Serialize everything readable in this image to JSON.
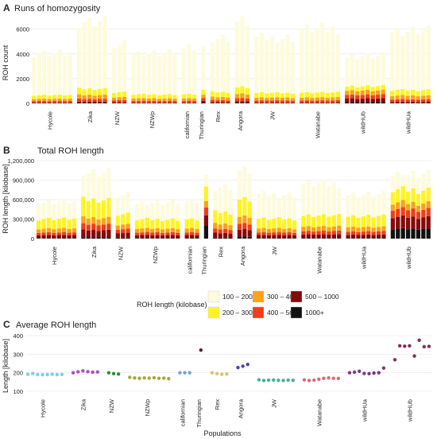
{
  "chart_data": [
    {
      "panel_letter": "A",
      "title": "Runs of homozygosity",
      "type": "bar",
      "stacked": true,
      "ylabel": "ROH count",
      "ylim": [
        0,
        7200
      ],
      "yticks": [
        0,
        2000,
        4000,
        6000
      ],
      "ytick_labels": [
        "0",
        "2000",
        "4000",
        "6000"
      ],
      "groups": [
        {
          "name": "Hycole",
          "n": 8,
          "total": 4000,
          "base": [
            350,
            300,
            180,
            120,
            60,
            15
          ]
        },
        {
          "name": "Zika",
          "n": 6,
          "total": 6650,
          "base": [
            600,
            500,
            320,
            220,
            110,
            30
          ]
        },
        {
          "name": "NZW",
          "n": 3,
          "total": 4700,
          "base": [
            450,
            400,
            240,
            160,
            80,
            20
          ]
        },
        {
          "name": "NZWp",
          "n": 9,
          "total": 4100,
          "base": [
            400,
            320,
            200,
            130,
            60,
            15
          ]
        },
        {
          "name": "californian",
          "n": 3,
          "total": 4400,
          "base": [
            400,
            330,
            200,
            130,
            60,
            15
          ]
        },
        {
          "name": "Thuringian",
          "n": 1,
          "total": 4500,
          "base": [
            450,
            400,
            280,
            200,
            150,
            60
          ]
        },
        {
          "name": "Rex",
          "n": 4,
          "total": 5300,
          "base": [
            450,
            400,
            250,
            160,
            80,
            20
          ]
        },
        {
          "name": "Angora",
          "n": 3,
          "total": 6600,
          "base": [
            700,
            550,
            350,
            250,
            130,
            40
          ]
        },
        {
          "name": "JW",
          "n": 8,
          "total": 5300,
          "base": [
            450,
            380,
            230,
            150,
            70,
            15
          ]
        },
        {
          "name": "Watanabe",
          "n": 8,
          "total": 6000,
          "base": [
            450,
            400,
            240,
            150,
            70,
            15
          ]
        },
        {
          "name": "wildHUb",
          "n": 8,
          "total": 3800,
          "base": [
            400,
            350,
            350,
            300,
            300,
            100
          ]
        },
        {
          "name": "wildHUa",
          "n": 8,
          "total": 5900,
          "base": [
            550,
            450,
            300,
            200,
            100,
            25
          ]
        }
      ],
      "series": [
        {
          "name": "100 - 200",
          "color": "#fdfbdd"
        },
        {
          "name": "200 - 300",
          "color": "#fff326"
        },
        {
          "name": "300 - 400",
          "color": "#f9a21a"
        },
        {
          "name": "400 - 500",
          "color": "#ef3e1c"
        },
        {
          "name": "500 - 1000",
          "color": "#850a0a"
        },
        {
          "name": "1000+",
          "color": "#111111"
        }
      ]
    },
    {
      "panel_letter": "B",
      "title": "Total ROH length",
      "type": "bar",
      "stacked": true,
      "ylabel": "ROH length [kilobase]",
      "ylim": [
        0,
        1250000
      ],
      "yticks": [
        0,
        300000,
        600000,
        900000,
        1200000
      ],
      "ytick_labels": [
        "0",
        "300,000",
        "600,000",
        "900,000",
        "1,200,000"
      ],
      "groups": [
        {
          "name": "Hycole",
          "n": 8,
          "total": 560000,
          "base": [
            180000,
            150000,
            60000,
            40000,
            45000,
            10000
          ]
        },
        {
          "name": "Zika",
          "n": 6,
          "total": 1020000,
          "base": [
            300000,
            280000,
            100000,
            90000,
            110000,
            20000
          ]
        },
        {
          "name": "NZW",
          "n": 3,
          "total": 660000,
          "base": [
            220000,
            160000,
            70000,
            60000,
            70000,
            15000
          ]
        },
        {
          "name": "NZWp",
          "n": 9,
          "total": 560000,
          "base": [
            180000,
            140000,
            60000,
            40000,
            45000,
            10000
          ]
        },
        {
          "name": "californian",
          "n": 3,
          "total": 560000,
          "base": [
            180000,
            140000,
            60000,
            40000,
            45000,
            10000
          ]
        },
        {
          "name": "Thuringian",
          "n": 1,
          "total": 950000,
          "base": [
            150000,
            220000,
            100000,
            120000,
            150000,
            200000
          ]
        },
        {
          "name": "Rex",
          "n": 4,
          "total": 800000,
          "base": [
            220000,
            180000,
            80000,
            60000,
            70000,
            15000
          ]
        },
        {
          "name": "Angora",
          "n": 3,
          "total": 1050000,
          "base": [
            320000,
            270000,
            110000,
            90000,
            110000,
            30000
          ]
        },
        {
          "name": "JW",
          "n": 8,
          "total": 680000,
          "base": [
            180000,
            150000,
            60000,
            40000,
            45000,
            10000
          ]
        },
        {
          "name": "Watanabe",
          "n": 8,
          "total": 840000,
          "base": [
            220000,
            170000,
            70000,
            50000,
            55000,
            10000
          ]
        },
        {
          "name": "wildHUa",
          "n": 8,
          "total": 680000,
          "base": [
            200000,
            170000,
            70000,
            50000,
            50000,
            10000
          ]
        },
        {
          "name": "wildHUb",
          "n": 8,
          "total": 1000000,
          "base": [
            150000,
            200000,
            100000,
            120000,
            180000,
            150000
          ]
        }
      ],
      "series": [
        {
          "name": "100 - 200",
          "color": "#fdfbdd"
        },
        {
          "name": "200 - 300",
          "color": "#fff326"
        },
        {
          "name": "300 - 400",
          "color": "#f9a21a"
        },
        {
          "name": "400 - 500",
          "color": "#ef3e1c"
        },
        {
          "name": "500 - 1000",
          "color": "#850a0a"
        },
        {
          "name": "1000+",
          "color": "#111111"
        }
      ]
    },
    {
      "panel_letter": "C",
      "title": "Average ROH length",
      "type": "scatter",
      "ylabel": "Length [kilobase]",
      "xlabel": "Populations",
      "ylim": [
        100,
        400
      ],
      "yticks": [
        100,
        200,
        300,
        400
      ],
      "ytick_labels": [
        "100",
        "200",
        "300",
        "400"
      ],
      "groups": [
        {
          "name": "Hycole",
          "color": "#7ccfe0",
          "values": [
            192,
            196,
            190,
            189,
            190,
            192,
            190,
            191
          ]
        },
        {
          "name": "Zika",
          "color": "#b04cbf",
          "values": [
            200,
            205,
            210,
            206,
            203,
            204
          ]
        },
        {
          "name": "NZW",
          "color": "#2e8b43",
          "values": [
            200,
            195,
            193
          ]
        },
        {
          "name": "NZWp",
          "color": "#a8a83a",
          "values": [
            175,
            172,
            170,
            172,
            171,
            173,
            170,
            171,
            168
          ]
        },
        {
          "name": "californian",
          "color": "#6fa6d6",
          "values": [
            200,
            200,
            200
          ]
        },
        {
          "name": "Thuringian",
          "color": "#5a1f1f",
          "values": [
            322
          ]
        },
        {
          "name": "Rex",
          "color": "#d8c46a",
          "values": [
            200,
            195,
            192,
            193
          ]
        },
        {
          "name": "Angora",
          "color": "#4b3fc9",
          "values": [
            228,
            235,
            245
          ]
        },
        {
          "name": "JW",
          "color": "#45ae9b",
          "values": [
            162,
            158,
            160,
            161,
            159,
            158,
            160,
            159
          ]
        },
        {
          "name": "Watanabe",
          "color": "#d86a7a",
          "values": [
            162,
            158,
            160,
            165,
            170,
            172,
            170,
            169
          ]
        },
        {
          "name": "wildHUa",
          "color": "#7c3a7c",
          "values": [
            200,
            203,
            208,
            196,
            195,
            198,
            200,
            225
          ]
        },
        {
          "name": "wildHUb",
          "color": "#8a2c55",
          "values": [
            270,
            345,
            343,
            345,
            290,
            375,
            340,
            342
          ]
        }
      ]
    }
  ],
  "legend": {
    "title": "ROH length (kilobase)",
    "items": [
      {
        "label": "100 – 200",
        "color": "#fdfbdd"
      },
      {
        "label": "200 – 300",
        "color": "#fff326"
      },
      {
        "label": "300 – 400",
        "color": "#f9a21a"
      },
      {
        "label": "400 – 500",
        "color": "#ef3e1c"
      },
      {
        "label": "500 – 1000",
        "color": "#850a0a"
      },
      {
        "label": "1000+",
        "color": "#111111"
      }
    ]
  }
}
